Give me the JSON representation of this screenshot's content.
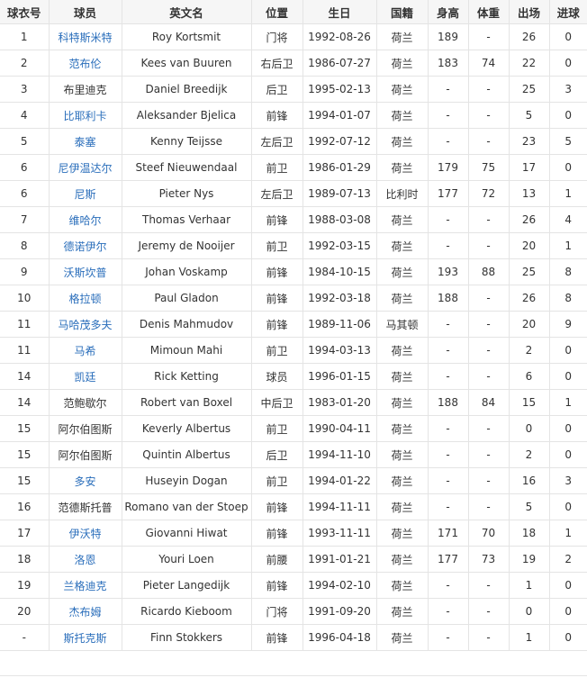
{
  "table": {
    "headers": [
      "球衣号",
      "球员",
      "英文名",
      "位置",
      "生日",
      "国籍",
      "身高",
      "体重",
      "出场",
      "进球"
    ],
    "link_color": "#2a6ebb",
    "rows": [
      {
        "number": "1",
        "name": "科特斯米特",
        "linked": true,
        "english": "Roy Kortsmit",
        "position": "门将",
        "birthday": "1992-08-26",
        "nationality": "荷兰",
        "height": "189",
        "weight": "-",
        "appearances": "26",
        "goals": "0"
      },
      {
        "number": "2",
        "name": "范布伦",
        "linked": true,
        "english": "Kees van Buuren",
        "position": "右后卫",
        "birthday": "1986-07-27",
        "nationality": "荷兰",
        "height": "183",
        "weight": "74",
        "appearances": "22",
        "goals": "0"
      },
      {
        "number": "3",
        "name": "布里迪克",
        "linked": false,
        "english": "Daniel Breedijk",
        "position": "后卫",
        "birthday": "1995-02-13",
        "nationality": "荷兰",
        "height": "-",
        "weight": "-",
        "appearances": "25",
        "goals": "3"
      },
      {
        "number": "4",
        "name": "比耶利卡",
        "linked": true,
        "english": "Aleksander Bjelica",
        "position": "前锋",
        "birthday": "1994-01-07",
        "nationality": "荷兰",
        "height": "-",
        "weight": "-",
        "appearances": "5",
        "goals": "0"
      },
      {
        "number": "5",
        "name": "泰塞",
        "linked": true,
        "english": "Kenny Teijsse",
        "position": "左后卫",
        "birthday": "1992-07-12",
        "nationality": "荷兰",
        "height": "-",
        "weight": "-",
        "appearances": "23",
        "goals": "5"
      },
      {
        "number": "6",
        "name": "尼伊温达尔",
        "linked": true,
        "english": "Steef Nieuwendaal",
        "position": "前卫",
        "birthday": "1986-01-29",
        "nationality": "荷兰",
        "height": "179",
        "weight": "75",
        "appearances": "17",
        "goals": "0"
      },
      {
        "number": "6",
        "name": "尼斯",
        "linked": true,
        "english": "Pieter Nys",
        "position": "左后卫",
        "birthday": "1989-07-13",
        "nationality": "比利时",
        "height": "177",
        "weight": "72",
        "appearances": "13",
        "goals": "1"
      },
      {
        "number": "7",
        "name": "维哈尔",
        "linked": true,
        "english": "Thomas Verhaar",
        "position": "前锋",
        "birthday": "1988-03-08",
        "nationality": "荷兰",
        "height": "-",
        "weight": "-",
        "appearances": "26",
        "goals": "4"
      },
      {
        "number": "8",
        "name": "德诺伊尔",
        "linked": true,
        "english": "Jeremy de Nooijer",
        "position": "前卫",
        "birthday": "1992-03-15",
        "nationality": "荷兰",
        "height": "-",
        "weight": "-",
        "appearances": "20",
        "goals": "1"
      },
      {
        "number": "9",
        "name": "沃斯坎普",
        "linked": true,
        "english": "Johan Voskamp",
        "position": "前锋",
        "birthday": "1984-10-15",
        "nationality": "荷兰",
        "height": "193",
        "weight": "88",
        "appearances": "25",
        "goals": "8"
      },
      {
        "number": "10",
        "name": "格拉顿",
        "linked": true,
        "english": "Paul Gladon",
        "position": "前锋",
        "birthday": "1992-03-18",
        "nationality": "荷兰",
        "height": "188",
        "weight": "-",
        "appearances": "26",
        "goals": "8"
      },
      {
        "number": "11",
        "name": "马哈茂多夫",
        "linked": true,
        "english": "Denis Mahmudov",
        "position": "前锋",
        "birthday": "1989-11-06",
        "nationality": "马其顿",
        "height": "-",
        "weight": "-",
        "appearances": "20",
        "goals": "9"
      },
      {
        "number": "11",
        "name": "马希",
        "linked": true,
        "english": "Mimoun Mahi",
        "position": "前卫",
        "birthday": "1994-03-13",
        "nationality": "荷兰",
        "height": "-",
        "weight": "-",
        "appearances": "2",
        "goals": "0"
      },
      {
        "number": "14",
        "name": "凯廷",
        "linked": true,
        "english": "Rick Ketting",
        "position": "球员",
        "birthday": "1996-01-15",
        "nationality": "荷兰",
        "height": "-",
        "weight": "-",
        "appearances": "6",
        "goals": "0"
      },
      {
        "number": "14",
        "name": "范鲍歇尔",
        "linked": false,
        "english": "Robert van Boxel",
        "position": "中后卫",
        "birthday": "1983-01-20",
        "nationality": "荷兰",
        "height": "188",
        "weight": "84",
        "appearances": "15",
        "goals": "1"
      },
      {
        "number": "15",
        "name": "阿尔伯图斯",
        "linked": false,
        "english": "Keverly Albertus",
        "position": "前卫",
        "birthday": "1990-04-11",
        "nationality": "荷兰",
        "height": "-",
        "weight": "-",
        "appearances": "0",
        "goals": "0"
      },
      {
        "number": "15",
        "name": "阿尔伯图斯",
        "linked": false,
        "english": "Quintin Albertus",
        "position": "后卫",
        "birthday": "1994-11-10",
        "nationality": "荷兰",
        "height": "-",
        "weight": "-",
        "appearances": "2",
        "goals": "0"
      },
      {
        "number": "15",
        "name": "多安",
        "linked": true,
        "english": "Huseyin Dogan",
        "position": "前卫",
        "birthday": "1994-01-22",
        "nationality": "荷兰",
        "height": "-",
        "weight": "-",
        "appearances": "16",
        "goals": "3"
      },
      {
        "number": "16",
        "name": "范德斯托普",
        "linked": false,
        "english": "Romano van der Stoep",
        "position": "前锋",
        "birthday": "1994-11-11",
        "nationality": "荷兰",
        "height": "-",
        "weight": "-",
        "appearances": "5",
        "goals": "0"
      },
      {
        "number": "17",
        "name": "伊沃特",
        "linked": true,
        "english": "Giovanni Hiwat",
        "position": "前锋",
        "birthday": "1993-11-11",
        "nationality": "荷兰",
        "height": "171",
        "weight": "70",
        "appearances": "18",
        "goals": "1"
      },
      {
        "number": "18",
        "name": "洛恩",
        "linked": true,
        "english": "Youri Loen",
        "position": "前腰",
        "birthday": "1991-01-21",
        "nationality": "荷兰",
        "height": "177",
        "weight": "73",
        "appearances": "19",
        "goals": "2"
      },
      {
        "number": "19",
        "name": "兰格迪克",
        "linked": true,
        "english": "Pieter Langedijk",
        "position": "前锋",
        "birthday": "1994-02-10",
        "nationality": "荷兰",
        "height": "-",
        "weight": "-",
        "appearances": "1",
        "goals": "0"
      },
      {
        "number": "20",
        "name": "杰布姆",
        "linked": true,
        "english": "Ricardo Kieboom",
        "position": "门将",
        "birthday": "1991-09-20",
        "nationality": "荷兰",
        "height": "-",
        "weight": "-",
        "appearances": "0",
        "goals": "0"
      },
      {
        "number": "-",
        "name": "斯托克斯",
        "linked": true,
        "english": "Finn Stokkers",
        "position": "前锋",
        "birthday": "1996-04-18",
        "nationality": "荷兰",
        "height": "-",
        "weight": "-",
        "appearances": "1",
        "goals": "0"
      }
    ]
  }
}
